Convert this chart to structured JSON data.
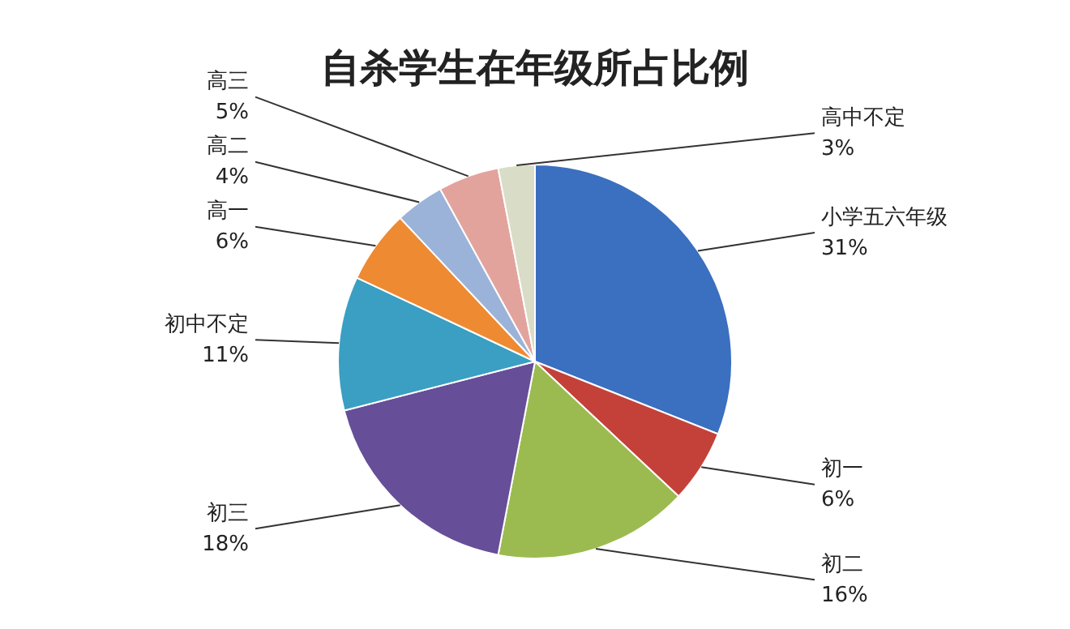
{
  "chart_data": {
    "type": "pie",
    "title": "自杀学生在年级所占比例",
    "categories": [
      "小学五六年级",
      "初一",
      "初二",
      "初三",
      "初中不定",
      "高一",
      "高二",
      "高三",
      "高中不定"
    ],
    "values": [
      31,
      6,
      16,
      18,
      11,
      6,
      4,
      5,
      3
    ],
    "value_labels": [
      "31%",
      "6%",
      "16%",
      "18%",
      "11%",
      "6%",
      "4%",
      "5%",
      "3%"
    ],
    "colors": [
      "#3b6fbf",
      "#c4413a",
      "#9bbb50",
      "#664e98",
      "#3a9fc2",
      "#ee8a32",
      "#9bb3d9",
      "#e3a39d",
      "#d9dcc6"
    ],
    "legend": false
  }
}
